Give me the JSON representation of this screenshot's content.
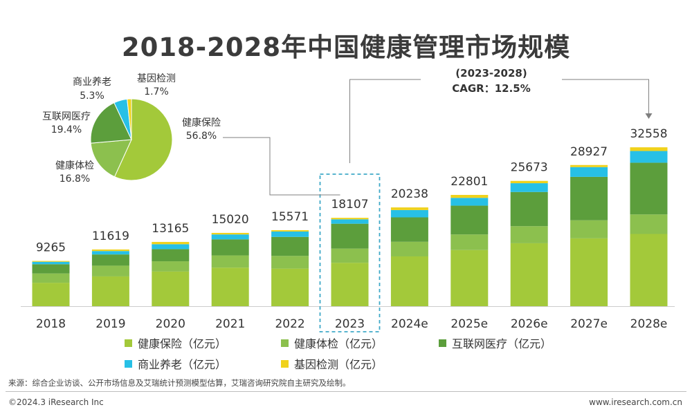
{
  "colors": {
    "insurance": "#a3c93a",
    "checkup": "#8cc04e",
    "internet_medical": "#5c9e3c",
    "elderly_care": "#27c0e6",
    "gene_testing": "#f0d21c",
    "highlight_box": "#3fa9c8",
    "connector": "#7f7f7f"
  },
  "chart_data": {
    "type": "bar",
    "title": "2018-2028年中国健康管理市场规模",
    "categories": [
      "2018",
      "2019",
      "2020",
      "2021",
      "2022",
      "2023",
      "2024e",
      "2025e",
      "2026e",
      "2027e",
      "2028e"
    ],
    "totals": [
      9265,
      11619,
      13165,
      15020,
      15571,
      18107,
      20238,
      22801,
      25673,
      28927,
      32558
    ],
    "stacked": true,
    "ylim": [
      0,
      33000
    ],
    "series": [
      {
        "name": "健康保险（亿元）",
        "values": [
          4800,
          6100,
          7100,
          7900,
          7700,
          8900,
          10200,
          11500,
          12900,
          13900,
          14800
        ]
      },
      {
        "name": "健康体检（亿元）",
        "values": [
          1900,
          2200,
          2100,
          2500,
          2600,
          2900,
          3000,
          3200,
          3500,
          3700,
          4000
        ]
      },
      {
        "name": "互联网医疗（亿元）",
        "values": [
          1900,
          2300,
          2500,
          3300,
          3900,
          5100,
          5000,
          5900,
          7000,
          8900,
          10600
        ]
      },
      {
        "name": "商业养老（亿元）",
        "values": [
          500,
          700,
          1000,
          1000,
          1100,
          900,
          1500,
          1600,
          1800,
          2000,
          2400
        ]
      },
      {
        "name": "基因检测（亿元）",
        "values": [
          165,
          319,
          465,
          320,
          271,
          307,
          538,
          601,
          473,
          427,
          758
        ]
      }
    ],
    "highlight": {
      "category": "2023"
    },
    "cagr": {
      "range": "(2023-2028)",
      "label": "CAGR：12.5%"
    },
    "pie": {
      "slices": [
        {
          "label": "健康保险",
          "percent_text": "56.8%",
          "value": 56.8
        },
        {
          "label": "健康体检",
          "percent_text": "16.8%",
          "value": 16.8
        },
        {
          "label": "互联网医疗",
          "percent_text": "19.4%",
          "value": 19.4
        },
        {
          "label": "商业养老",
          "percent_text": "5.3%",
          "value": 5.3
        },
        {
          "label": "基因检测",
          "percent_text": "1.7%",
          "value": 1.7
        }
      ]
    }
  },
  "source": "来源：综合企业访谈、公开市场信息及艾瑞统计预测模型估算，艾瑞咨询研究院自主研究及绘制。",
  "copyright": "©2024.3 iResearch Inc",
  "website": "www.iresearch.com.cn"
}
